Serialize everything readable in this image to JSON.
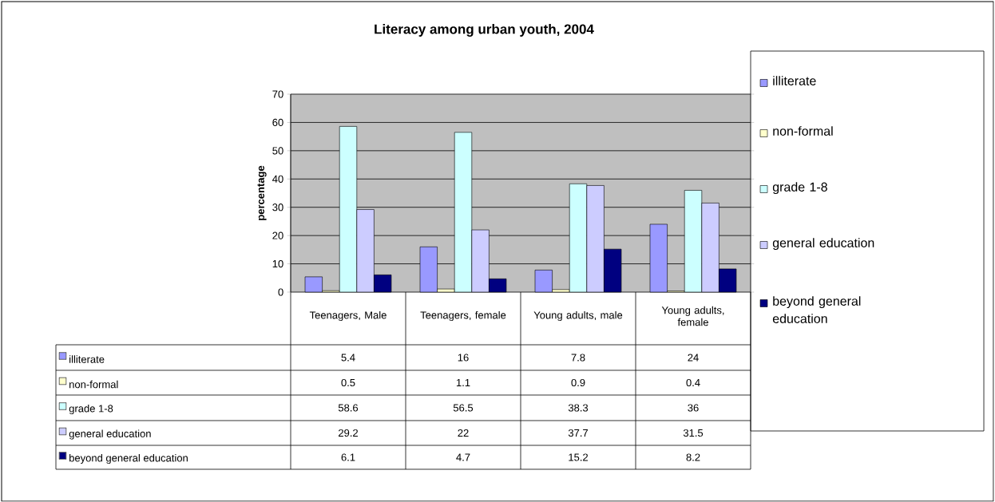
{
  "chart_data": {
    "type": "bar",
    "title": "Literacy among urban youth, 2004",
    "ylabel": "percentage",
    "categories": [
      "Teenagers, Male",
      "Teenagers, female",
      "Young adults, male",
      "Young adults, female"
    ],
    "series": [
      {
        "name": "illiterate",
        "color": "#9999ff",
        "values": [
          5.4,
          16,
          7.8,
          24
        ]
      },
      {
        "name": "non-formal",
        "color": "#ffffcc",
        "values": [
          0.5,
          1.1,
          0.9,
          0.4
        ]
      },
      {
        "name": "grade 1-8",
        "color": "#ccffff",
        "values": [
          58.6,
          56.5,
          38.3,
          36
        ]
      },
      {
        "name": "general education",
        "color": "#ccccff",
        "values": [
          29.2,
          22,
          37.7,
          31.5
        ]
      },
      {
        "name": "beyond general education",
        "color": "#000080",
        "values": [
          6.1,
          4.7,
          15.2,
          8.2
        ]
      }
    ],
    "ylim": [
      0,
      70
    ],
    "yticks": [
      0,
      10,
      20,
      30,
      40,
      50,
      60,
      70
    ],
    "grid": "y",
    "legend": "right",
    "data_labels": true
  }
}
